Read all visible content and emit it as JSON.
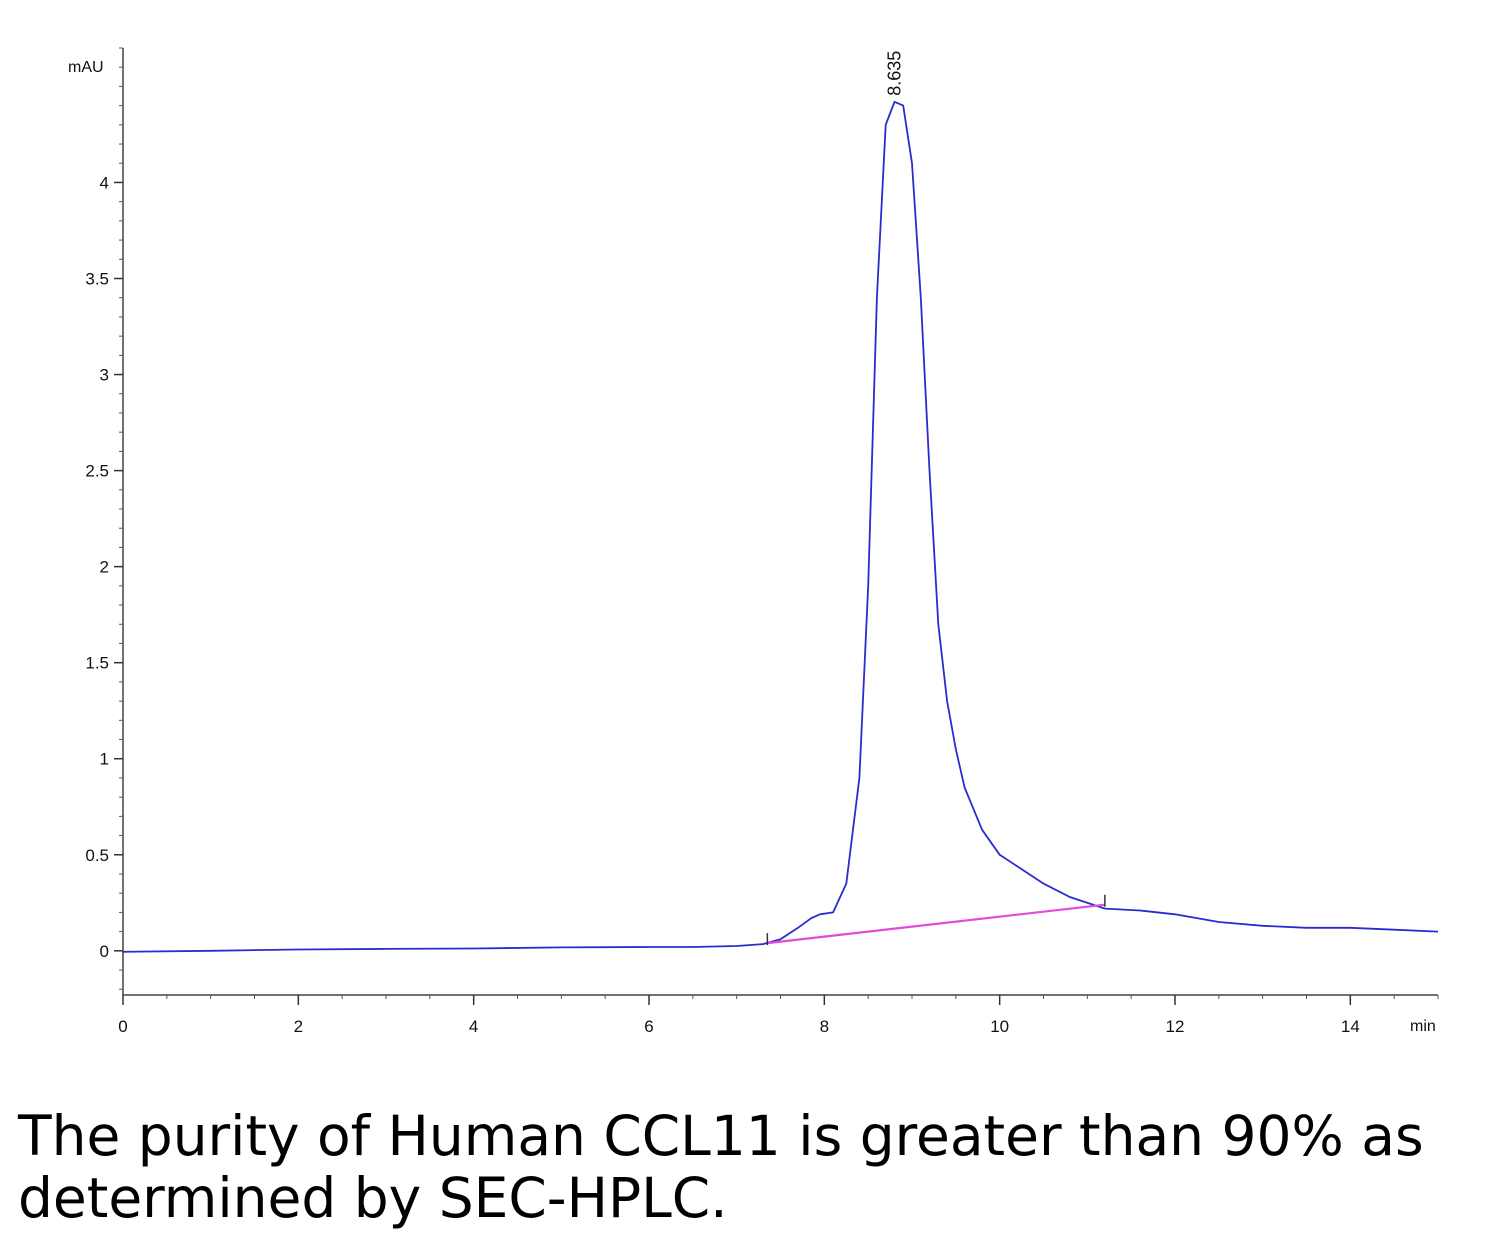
{
  "chart_data": {
    "type": "line",
    "y_unit_label": "mAU",
    "x_unit_label": "min",
    "xlim": [
      0,
      15
    ],
    "ylim": [
      -0.23,
      4.7
    ],
    "x_ticks": [
      0,
      2,
      4,
      6,
      8,
      10,
      12,
      14
    ],
    "x_tick_labels": [
      "0",
      "2",
      "4",
      "6",
      "8",
      "10",
      "12",
      "14"
    ],
    "y_ticks": [
      0,
      0.5,
      1,
      1.5,
      2,
      2.5,
      3,
      3.5,
      4
    ],
    "y_tick_labels": [
      "0",
      "0.5",
      "1",
      "1.5",
      "2",
      "2.5",
      "3",
      "3.5",
      "4"
    ],
    "grid": false,
    "series": [
      {
        "color": "#2b2bd0",
        "x": [
          0,
          1,
          2,
          3,
          4,
          5,
          6,
          6.5,
          7,
          7.3,
          7.5,
          7.7,
          7.85,
          7.95,
          8.1,
          8.25,
          8.4,
          8.5,
          8.6,
          8.7,
          8.8,
          8.9,
          9.0,
          9.1,
          9.2,
          9.3,
          9.4,
          9.5,
          9.6,
          9.8,
          10.0,
          10.2,
          10.5,
          10.8,
          11.2,
          11.6,
          12.0,
          12.5,
          13.0,
          13.5,
          14.0,
          14.5,
          15.0
        ],
        "y": [
          -0.005,
          0.0,
          0.007,
          0.01,
          0.012,
          0.018,
          0.02,
          0.02,
          0.025,
          0.035,
          0.06,
          0.12,
          0.17,
          0.19,
          0.2,
          0.35,
          0.9,
          1.9,
          3.4,
          4.3,
          4.42,
          4.4,
          4.1,
          3.4,
          2.5,
          1.7,
          1.3,
          1.05,
          0.85,
          0.63,
          0.5,
          0.44,
          0.35,
          0.28,
          0.22,
          0.21,
          0.19,
          0.15,
          0.13,
          0.12,
          0.12,
          0.11,
          0.1
        ]
      },
      {
        "color": "#e24ad9",
        "x": [
          7.35,
          11.2
        ],
        "y": [
          0.04,
          0.24
        ]
      }
    ],
    "integration_marks": [
      7.35,
      11.2
    ],
    "annotations": [
      {
        "text": "8.635",
        "x": 8.8,
        "y": 4.42
      }
    ]
  },
  "caption": "The purity of Human CCL11 is greater than 90% as determined by SEC-HPLC."
}
